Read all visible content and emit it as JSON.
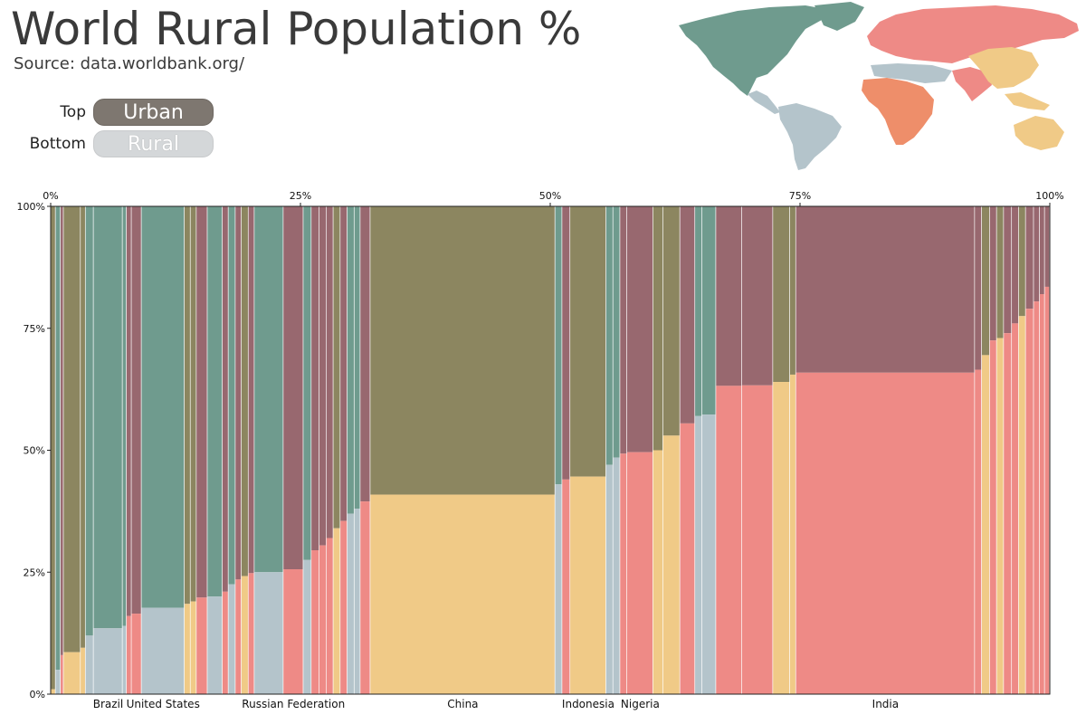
{
  "header": {
    "title": "World Rural Population %",
    "source": "Source: data.worldbank.org/"
  },
  "legend": {
    "top_label": "Top",
    "top_value": "Urban",
    "bottom_label": "Bottom",
    "bottom_value": "Rural"
  },
  "colors": {
    "urban_legend": "#7e7770",
    "rural_legend": "#d4d7d9",
    "americas_rural": "#b4c4cb",
    "americas_urban": "#6f9b8e",
    "asia_rural": "#f0ca87",
    "asia_urban": "#8c8660",
    "africa_rural": "#ee8a86",
    "africa_urban": "#98686f",
    "europe_rural": "#ee8a86",
    "europe_urban": "#98686f",
    "africa_map": "#ee8e6a"
  },
  "map": {
    "icon": "world-map-icon"
  },
  "chart_data": {
    "type": "marimekko",
    "title": "World Rural Population %",
    "x_axis": {
      "ticks": [
        "0%",
        "25%",
        "50%",
        "75%",
        "100%"
      ],
      "range": [
        0,
        100
      ]
    },
    "y_axis": {
      "ticks": [
        "0%",
        "25%",
        "50%",
        "75%",
        "100%"
      ],
      "range": [
        0,
        100
      ]
    },
    "labeled_countries": [
      {
        "name": "Brazil",
        "x_start": 4.3,
        "x_end": 7.2,
        "rural_pct": 13.5
      },
      {
        "name": "United States",
        "x_start": 9.1,
        "x_end": 13.4,
        "rural_pct": 17.7
      },
      {
        "name": "Russian Federation",
        "x_start": 23.3,
        "x_end": 25.3,
        "rural_pct": 25.6
      },
      {
        "name": "China",
        "x_start": 32.0,
        "x_end": 50.5,
        "rural_pct": 40.9
      },
      {
        "name": "Indonesia",
        "x_start": 52.0,
        "x_end": 55.6,
        "rural_pct": 44.6
      },
      {
        "name": "Nigeria",
        "x_start": 57.7,
        "x_end": 60.3,
        "rural_pct": 49.6
      },
      {
        "name": "India",
        "x_start": 74.6,
        "x_end": 92.5,
        "rural_pct": 65.9
      }
    ],
    "segments": [
      {
        "x_start": 0.0,
        "x_end": 0.5,
        "rural_pct": 1.0,
        "region": "asia"
      },
      {
        "x_start": 0.5,
        "x_end": 1.0,
        "rural_pct": 5.0,
        "region": "americas"
      },
      {
        "x_start": 1.0,
        "x_end": 1.3,
        "rural_pct": 8.0,
        "region": "africa"
      },
      {
        "x_start": 1.3,
        "x_end": 3.0,
        "rural_pct": 8.6,
        "region": "asia"
      },
      {
        "x_start": 3.0,
        "x_end": 3.5,
        "rural_pct": 9.5,
        "region": "asia"
      },
      {
        "x_start": 3.5,
        "x_end": 4.3,
        "rural_pct": 12.0,
        "region": "americas"
      },
      {
        "x_start": 4.3,
        "x_end": 7.2,
        "rural_pct": 13.5,
        "region": "americas"
      },
      {
        "x_start": 7.2,
        "x_end": 7.6,
        "rural_pct": 14.0,
        "region": "americas"
      },
      {
        "x_start": 7.6,
        "x_end": 8.1,
        "rural_pct": 16.0,
        "region": "europe"
      },
      {
        "x_start": 8.1,
        "x_end": 9.1,
        "rural_pct": 16.5,
        "region": "africa"
      },
      {
        "x_start": 9.1,
        "x_end": 13.4,
        "rural_pct": 17.7,
        "region": "americas"
      },
      {
        "x_start": 13.4,
        "x_end": 14.0,
        "rural_pct": 18.5,
        "region": "asia"
      },
      {
        "x_start": 14.0,
        "x_end": 14.6,
        "rural_pct": 19.0,
        "region": "asia"
      },
      {
        "x_start": 14.6,
        "x_end": 15.7,
        "rural_pct": 19.8,
        "region": "europe"
      },
      {
        "x_start": 15.7,
        "x_end": 17.2,
        "rural_pct": 20.0,
        "region": "americas"
      },
      {
        "x_start": 17.2,
        "x_end": 17.8,
        "rural_pct": 21.0,
        "region": "europe"
      },
      {
        "x_start": 17.8,
        "x_end": 18.5,
        "rural_pct": 22.5,
        "region": "americas"
      },
      {
        "x_start": 18.5,
        "x_end": 19.1,
        "rural_pct": 23.5,
        "region": "europe"
      },
      {
        "x_start": 19.1,
        "x_end": 19.8,
        "rural_pct": 24.2,
        "region": "asia"
      },
      {
        "x_start": 19.8,
        "x_end": 20.4,
        "rural_pct": 24.8,
        "region": "europe"
      },
      {
        "x_start": 20.4,
        "x_end": 23.3,
        "rural_pct": 25.0,
        "region": "americas"
      },
      {
        "x_start": 23.3,
        "x_end": 25.3,
        "rural_pct": 25.6,
        "region": "europe"
      },
      {
        "x_start": 25.3,
        "x_end": 26.1,
        "rural_pct": 27.5,
        "region": "americas"
      },
      {
        "x_start": 26.1,
        "x_end": 26.9,
        "rural_pct": 29.5,
        "region": "europe"
      },
      {
        "x_start": 26.9,
        "x_end": 27.6,
        "rural_pct": 30.5,
        "region": "europe"
      },
      {
        "x_start": 27.6,
        "x_end": 28.3,
        "rural_pct": 32.0,
        "region": "africa"
      },
      {
        "x_start": 28.3,
        "x_end": 29.0,
        "rural_pct": 34.0,
        "region": "asia"
      },
      {
        "x_start": 29.0,
        "x_end": 29.7,
        "rural_pct": 35.5,
        "region": "europe"
      },
      {
        "x_start": 29.7,
        "x_end": 30.4,
        "rural_pct": 37.0,
        "region": "americas"
      },
      {
        "x_start": 30.4,
        "x_end": 31.0,
        "rural_pct": 38.0,
        "region": "americas"
      },
      {
        "x_start": 31.0,
        "x_end": 32.0,
        "rural_pct": 39.5,
        "region": "europe"
      },
      {
        "x_start": 32.0,
        "x_end": 50.5,
        "rural_pct": 40.9,
        "region": "asia"
      },
      {
        "x_start": 50.5,
        "x_end": 51.2,
        "rural_pct": 43.0,
        "region": "americas"
      },
      {
        "x_start": 51.2,
        "x_end": 52.0,
        "rural_pct": 44.0,
        "region": "africa"
      },
      {
        "x_start": 52.0,
        "x_end": 55.6,
        "rural_pct": 44.6,
        "region": "asia"
      },
      {
        "x_start": 55.6,
        "x_end": 56.3,
        "rural_pct": 47.0,
        "region": "americas"
      },
      {
        "x_start": 56.3,
        "x_end": 57.0,
        "rural_pct": 48.5,
        "region": "americas"
      },
      {
        "x_start": 57.0,
        "x_end": 57.7,
        "rural_pct": 49.3,
        "region": "africa"
      },
      {
        "x_start": 57.7,
        "x_end": 60.3,
        "rural_pct": 49.6,
        "region": "africa"
      },
      {
        "x_start": 60.3,
        "x_end": 61.3,
        "rural_pct": 50.0,
        "region": "asia"
      },
      {
        "x_start": 61.3,
        "x_end": 63.0,
        "rural_pct": 53.0,
        "region": "asia"
      },
      {
        "x_start": 63.0,
        "x_end": 64.5,
        "rural_pct": 55.5,
        "region": "africa"
      },
      {
        "x_start": 64.5,
        "x_end": 65.2,
        "rural_pct": 57.0,
        "region": "americas"
      },
      {
        "x_start": 65.2,
        "x_end": 66.6,
        "rural_pct": 57.3,
        "region": "americas"
      },
      {
        "x_start": 66.6,
        "x_end": 69.2,
        "rural_pct": 63.2,
        "region": "africa"
      },
      {
        "x_start": 69.2,
        "x_end": 72.3,
        "rural_pct": 63.3,
        "region": "africa"
      },
      {
        "x_start": 72.3,
        "x_end": 74.0,
        "rural_pct": 64.0,
        "region": "asia"
      },
      {
        "x_start": 74.0,
        "x_end": 74.6,
        "rural_pct": 65.5,
        "region": "asia"
      },
      {
        "x_start": 74.6,
        "x_end": 92.5,
        "rural_pct": 65.9,
        "region": "africa"
      },
      {
        "x_start": 92.5,
        "x_end": 93.2,
        "rural_pct": 66.5,
        "region": "africa"
      },
      {
        "x_start": 93.2,
        "x_end": 94.0,
        "rural_pct": 69.5,
        "region": "asia"
      },
      {
        "x_start": 94.0,
        "x_end": 94.7,
        "rural_pct": 72.5,
        "region": "africa"
      },
      {
        "x_start": 94.7,
        "x_end": 95.4,
        "rural_pct": 73.0,
        "region": "asia"
      },
      {
        "x_start": 95.4,
        "x_end": 96.2,
        "rural_pct": 74.0,
        "region": "africa"
      },
      {
        "x_start": 96.2,
        "x_end": 96.9,
        "rural_pct": 76.0,
        "region": "africa"
      },
      {
        "x_start": 96.9,
        "x_end": 97.6,
        "rural_pct": 77.5,
        "region": "asia"
      },
      {
        "x_start": 97.6,
        "x_end": 98.4,
        "rural_pct": 79.0,
        "region": "africa"
      },
      {
        "x_start": 98.4,
        "x_end": 99.0,
        "rural_pct": 80.5,
        "region": "africa"
      },
      {
        "x_start": 99.0,
        "x_end": 99.5,
        "rural_pct": 82.0,
        "region": "africa"
      },
      {
        "x_start": 99.5,
        "x_end": 100.0,
        "rural_pct": 83.5,
        "region": "africa"
      }
    ]
  }
}
